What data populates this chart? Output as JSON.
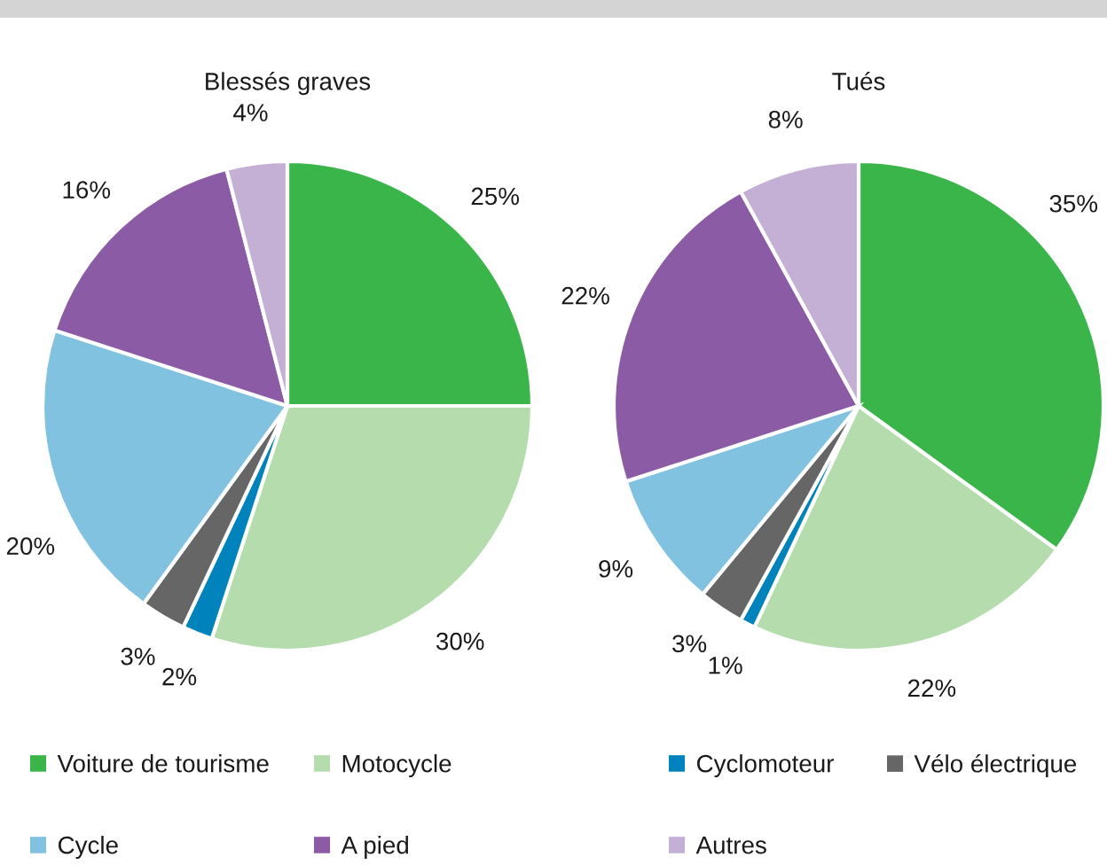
{
  "chart_data": {
    "type": "pie",
    "categories": [
      "Voiture de tourisme",
      "Motocycle",
      "Cyclomoteur",
      "Vélo électrique",
      "Cycle",
      "A pied",
      "Autres"
    ],
    "colors": [
      "#3ab54a",
      "#b4dcad",
      "#0083bd",
      "#666666",
      "#80c2e0",
      "#8c5ba5",
      "#c5b0d5"
    ],
    "legend": "bottom",
    "series": [
      {
        "name": "Blessés graves",
        "values": [
          25,
          30,
          2,
          3,
          20,
          16,
          4
        ],
        "value_labels": [
          "25%",
          "30%",
          "2%",
          "3%",
          "20%",
          "16%",
          "4%"
        ]
      },
      {
        "name": "Tués",
        "values": [
          35,
          22,
          1,
          3,
          9,
          22,
          8
        ],
        "value_labels": [
          "35%",
          "22%",
          "1%",
          "3%",
          "9%",
          "22%",
          "8%"
        ]
      }
    ]
  }
}
